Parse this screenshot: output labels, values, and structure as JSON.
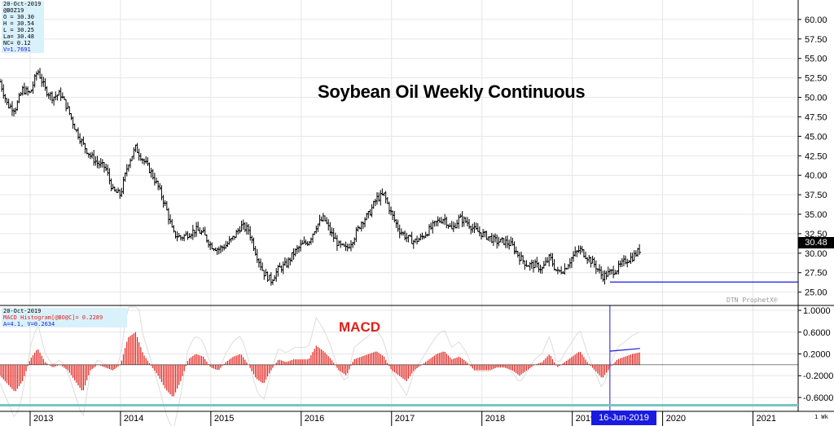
{
  "price_box": {
    "date": "20-Oct-2019",
    "symbol": "@BOZ19",
    "open": "O = 30.30",
    "high": "H = 30.54",
    "low": "L = 30.25",
    "last": "La= 30.48",
    "net_change": "NC= 0.12",
    "volume": "V=1.7691"
  },
  "macd_box": {
    "date": "20-Oct-2019",
    "hist_label": "MACD Histogram[@BO@C]= 0.2289",
    "params": "A=4.1, V=0.2634"
  },
  "title": "Soybean Oil Weekly Continuous",
  "macd_title": "MACD",
  "watermark": "DTN ProphetX®",
  "last_price_tag": "30.48",
  "cursor_date": "16-Jun-2019",
  "x_unit": "1 Wk",
  "colors": {
    "bars": "#000000",
    "histogram": "#e0201a",
    "support_line": "#1a1ae0",
    "macd_line": "#ffffff",
    "last_tag_bg": "#000000",
    "date_tag_bg": "#1a1ae0"
  },
  "chart_data": [
    {
      "type": "ohlc",
      "title": "Soybean Oil Weekly Continuous",
      "y_axis_side": "right",
      "ylim": [
        23.5,
        62.5
      ],
      "y_ticks": [
        "25.00",
        "27.50",
        "30.00",
        "32.50",
        "35.00",
        "37.50",
        "40.00",
        "42.50",
        "45.00",
        "47.50",
        "50.00",
        "52.50",
        "55.00",
        "57.50",
        "60.00"
      ],
      "x_range": [
        "2012-09",
        "2021-07"
      ],
      "x_ticks": [
        "2013",
        "2014",
        "2015",
        "2016",
        "2017",
        "2018",
        "2019",
        "2020",
        "2021"
      ],
      "last": 30.48,
      "support_line": {
        "value": 26.3,
        "from": "2019-06"
      },
      "close_path": [
        [
          "2012-09",
          52.0
        ],
        [
          "2012-10",
          49.0
        ],
        [
          "2012-11",
          48.5
        ],
        [
          "2012-12",
          51.0
        ],
        [
          "2013-01",
          50.5
        ],
        [
          "2013-02",
          53.5
        ],
        [
          "2013-03",
          51.0
        ],
        [
          "2013-04",
          50.0
        ],
        [
          "2013-05",
          50.5
        ],
        [
          "2013-06",
          48.5
        ],
        [
          "2013-07",
          46.0
        ],
        [
          "2013-08",
          44.0
        ],
        [
          "2013-09",
          42.5
        ],
        [
          "2013-10",
          41.5
        ],
        [
          "2013-11",
          41.0
        ],
        [
          "2013-12",
          38.0
        ],
        [
          "2014-01",
          37.5
        ],
        [
          "2014-02",
          41.5
        ],
        [
          "2014-03",
          43.5
        ],
        [
          "2014-04",
          42.0
        ],
        [
          "2014-05",
          40.5
        ],
        [
          "2014-06",
          38.5
        ],
        [
          "2014-07",
          36.0
        ],
        [
          "2014-08",
          32.5
        ],
        [
          "2014-09",
          32.0
        ],
        [
          "2014-10",
          32.5
        ],
        [
          "2014-11",
          33.0
        ],
        [
          "2014-12",
          32.5
        ],
        [
          "2015-01",
          31.0
        ],
        [
          "2015-02",
          30.5
        ],
        [
          "2015-03",
          31.0
        ],
        [
          "2015-04",
          32.0
        ],
        [
          "2015-05",
          33.5
        ],
        [
          "2015-06",
          33.0
        ],
        [
          "2015-07",
          30.0
        ],
        [
          "2015-08",
          27.5
        ],
        [
          "2015-09",
          26.5
        ],
        [
          "2015-10",
          28.0
        ],
        [
          "2015-11",
          28.5
        ],
        [
          "2015-12",
          30.0
        ],
        [
          "2016-01",
          31.0
        ],
        [
          "2016-02",
          31.5
        ],
        [
          "2016-03",
          33.5
        ],
        [
          "2016-04",
          34.5
        ],
        [
          "2016-05",
          32.5
        ],
        [
          "2016-06",
          31.0
        ],
        [
          "2016-07",
          30.5
        ],
        [
          "2016-08",
          32.0
        ],
        [
          "2016-09",
          34.0
        ],
        [
          "2016-10",
          35.0
        ],
        [
          "2016-11",
          37.0
        ],
        [
          "2016-12",
          37.5
        ],
        [
          "2017-01",
          35.0
        ],
        [
          "2017-02",
          33.0
        ],
        [
          "2017-03",
          32.0
        ],
        [
          "2017-04",
          31.5
        ],
        [
          "2017-05",
          32.0
        ],
        [
          "2017-06",
          33.0
        ],
        [
          "2017-07",
          34.0
        ],
        [
          "2017-08",
          34.5
        ],
        [
          "2017-09",
          33.0
        ],
        [
          "2017-10",
          34.5
        ],
        [
          "2017-11",
          34.0
        ],
        [
          "2017-12",
          33.0
        ],
        [
          "2018-01",
          32.5
        ],
        [
          "2018-02",
          32.0
        ],
        [
          "2018-03",
          31.5
        ],
        [
          "2018-04",
          31.5
        ],
        [
          "2018-05",
          31.0
        ],
        [
          "2018-06",
          29.5
        ],
        [
          "2018-07",
          28.5
        ],
        [
          "2018-08",
          28.5
        ],
        [
          "2018-09",
          28.0
        ],
        [
          "2018-10",
          29.5
        ],
        [
          "2018-11",
          27.5
        ],
        [
          "2018-12",
          28.0
        ],
        [
          "2019-01",
          29.5
        ],
        [
          "2019-02",
          30.5
        ],
        [
          "2019-03",
          29.5
        ],
        [
          "2019-04",
          28.5
        ],
        [
          "2019-05",
          27.0
        ],
        [
          "2019-06",
          27.5
        ],
        [
          "2019-07",
          28.0
        ],
        [
          "2019-08",
          29.0
        ],
        [
          "2019-09",
          29.5
        ],
        [
          "2019-10",
          30.48
        ]
      ]
    },
    {
      "type": "bar",
      "series_name": "MACD Histogram[@BO@C]",
      "ylim": [
        -0.72,
        1.06
      ],
      "y_ticks": [
        "-0.6000",
        "-0.2000",
        "0.2000",
        "0.6000",
        "1.0000"
      ],
      "last": 0.2289,
      "histogram_path": [
        [
          "2012-09",
          -0.2
        ],
        [
          "2012-11",
          -0.5
        ],
        [
          "2012-12",
          -0.3
        ],
        [
          "2013-01",
          0.1
        ],
        [
          "2013-02",
          0.3
        ],
        [
          "2013-03",
          0.05
        ],
        [
          "2013-04",
          -0.05
        ],
        [
          "2013-05",
          0.0
        ],
        [
          "2013-06",
          -0.1
        ],
        [
          "2013-07",
          -0.3
        ],
        [
          "2013-08",
          -0.5
        ],
        [
          "2013-09",
          -0.1
        ],
        [
          "2013-10",
          0.0
        ],
        [
          "2013-11",
          -0.05
        ],
        [
          "2013-12",
          -0.1
        ],
        [
          "2014-01",
          0.0
        ],
        [
          "2014-02",
          0.5
        ],
        [
          "2014-03",
          0.6
        ],
        [
          "2014-04",
          0.2
        ],
        [
          "2014-05",
          0.0
        ],
        [
          "2014-06",
          -0.2
        ],
        [
          "2014-07",
          -0.45
        ],
        [
          "2014-08",
          -0.6
        ],
        [
          "2014-09",
          -0.3
        ],
        [
          "2014-10",
          0.1
        ],
        [
          "2014-11",
          0.2
        ],
        [
          "2014-12",
          0.15
        ],
        [
          "2015-01",
          -0.05
        ],
        [
          "2015-02",
          -0.1
        ],
        [
          "2015-03",
          0.05
        ],
        [
          "2015-04",
          0.15
        ],
        [
          "2015-05",
          0.2
        ],
        [
          "2015-06",
          0.0
        ],
        [
          "2015-07",
          -0.25
        ],
        [
          "2015-08",
          -0.35
        ],
        [
          "2015-09",
          -0.1
        ],
        [
          "2015-10",
          0.1
        ],
        [
          "2015-11",
          0.05
        ],
        [
          "2015-12",
          0.1
        ],
        [
          "2016-01",
          0.1
        ],
        [
          "2016-02",
          0.1
        ],
        [
          "2016-03",
          0.35
        ],
        [
          "2016-04",
          0.25
        ],
        [
          "2016-05",
          0.1
        ],
        [
          "2016-06",
          -0.1
        ],
        [
          "2016-07",
          -0.2
        ],
        [
          "2016-08",
          0.1
        ],
        [
          "2016-09",
          0.15
        ],
        [
          "2016-10",
          0.2
        ],
        [
          "2016-11",
          0.25
        ],
        [
          "2016-12",
          0.15
        ],
        [
          "2017-01",
          -0.1
        ],
        [
          "2017-02",
          -0.2
        ],
        [
          "2017-03",
          -0.3
        ],
        [
          "2017-04",
          -0.1
        ],
        [
          "2017-05",
          0.0
        ],
        [
          "2017-06",
          0.1
        ],
        [
          "2017-07",
          0.2
        ],
        [
          "2017-08",
          0.25
        ],
        [
          "2017-09",
          0.1
        ],
        [
          "2017-10",
          0.15
        ],
        [
          "2017-11",
          0.05
        ],
        [
          "2017-12",
          -0.1
        ],
        [
          "2018-01",
          -0.1
        ],
        [
          "2018-02",
          -0.1
        ],
        [
          "2018-03",
          -0.05
        ],
        [
          "2018-04",
          -0.05
        ],
        [
          "2018-05",
          -0.1
        ],
        [
          "2018-06",
          -0.2
        ],
        [
          "2018-07",
          -0.1
        ],
        [
          "2018-08",
          0.0
        ],
        [
          "2018-09",
          0.05
        ],
        [
          "2018-10",
          0.2
        ],
        [
          "2018-11",
          -0.05
        ],
        [
          "2018-12",
          0.05
        ],
        [
          "2019-01",
          0.15
        ],
        [
          "2019-02",
          0.25
        ],
        [
          "2019-03",
          0.05
        ],
        [
          "2019-04",
          -0.1
        ],
        [
          "2019-05",
          -0.25
        ],
        [
          "2019-06",
          -0.05
        ],
        [
          "2019-07",
          0.1
        ],
        [
          "2019-08",
          0.15
        ],
        [
          "2019-09",
          0.2
        ],
        [
          "2019-10",
          0.2289
        ]
      ],
      "trend_line": [
        [
          "2019-06",
          0.25
        ],
        [
          "2019-10",
          0.3
        ]
      ]
    }
  ]
}
